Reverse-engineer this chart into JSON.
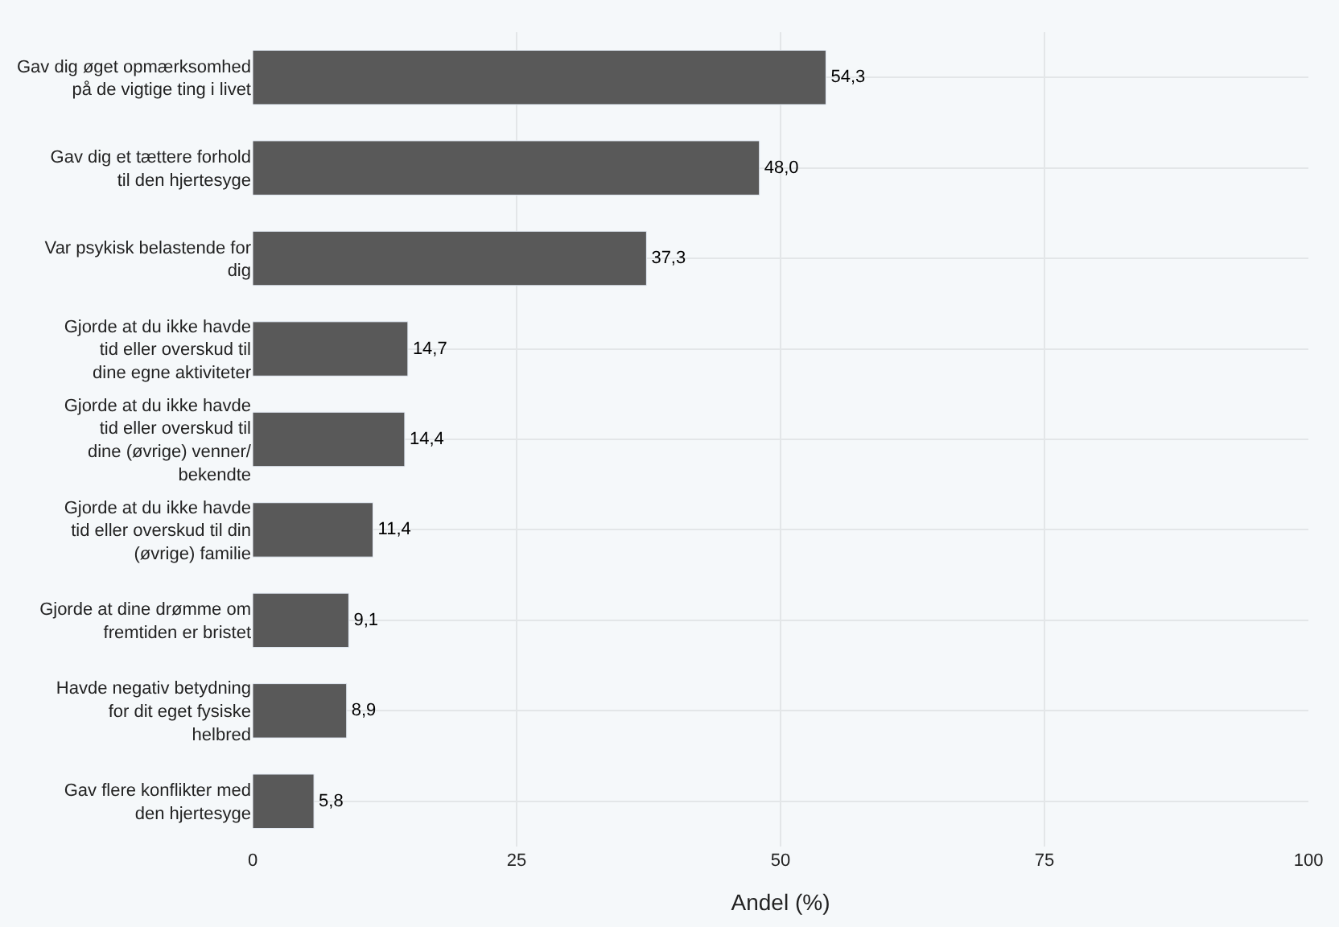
{
  "chart_data": {
    "type": "bar",
    "orientation": "horizontal",
    "xlabel": "Andel (%)",
    "categories": [
      "Gav dig øget opmærksomhed på de vigtige ting i livet",
      "Gav dig et tættere forhold til den hjertesyge",
      "Var psykisk belastende for dig",
      "Gjorde at du ikke havde tid eller overskud til dine egne aktiviteter",
      "Gjorde at du ikke havde tid eller overskud til dine (øvrige) venner/ bekendte",
      "Gjorde at du ikke havde tid eller overskud til din (øvrige) familie",
      "Gjorde at dine drømme om fremtiden er bristet",
      "Havde negativ betydning for dit eget fysiske helbred",
      "Gav flere konflikter med den hjertesyge"
    ],
    "values": [
      54.3,
      48.0,
      37.3,
      14.7,
      14.4,
      11.4,
      9.1,
      8.9,
      5.8
    ],
    "value_labels": [
      "54,3",
      "48,0",
      "37,3",
      "14,7",
      "14,4",
      "11,4",
      "9,1",
      "8,9",
      "5,8"
    ],
    "color": "#595959",
    "xlim": [
      0,
      100
    ],
    "xticks": [
      0,
      25,
      50,
      75,
      100
    ],
    "grid": true,
    "legend": false
  }
}
